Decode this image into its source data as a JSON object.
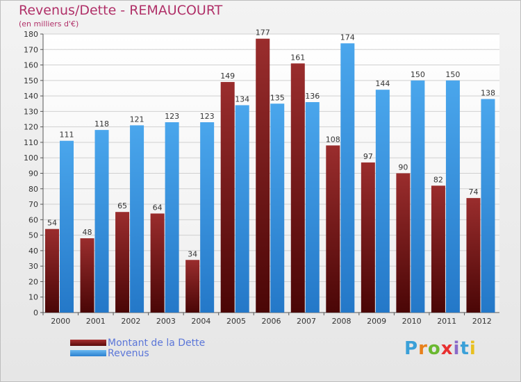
{
  "chart_data": {
    "type": "bar",
    "title": "Revenus/Dette - REMAUCOURT",
    "subtitle": "(en milliers d'€)",
    "categories": [
      "2000",
      "2001",
      "2002",
      "2003",
      "2004",
      "2005",
      "2006",
      "2007",
      "2008",
      "2009",
      "2010",
      "2011",
      "2012"
    ],
    "series": [
      {
        "name": "Montant de la Dette",
        "values": [
          54,
          48,
          65,
          64,
          34,
          149,
          177,
          161,
          108,
          97,
          90,
          82,
          74
        ],
        "color": "#7a1e1e"
      },
      {
        "name": "Revenus",
        "values": [
          111,
          118,
          121,
          123,
          123,
          134,
          135,
          136,
          174,
          144,
          150,
          150,
          138
        ],
        "color": "#3d95e0"
      }
    ],
    "ylim": [
      0,
      180
    ],
    "yticks": [
      0,
      10,
      20,
      30,
      40,
      50,
      60,
      70,
      80,
      90,
      100,
      110,
      120,
      130,
      140,
      150,
      160,
      170,
      180
    ],
    "grid": true,
    "legend_position": "bottom-left"
  },
  "logo": {
    "letters": [
      "P",
      "r",
      "o",
      "x",
      "i",
      "t",
      "i"
    ],
    "colors": [
      "#3aa0d8",
      "#e8801a",
      "#6ab830",
      "#e83030",
      "#8a6ac8",
      "#3aa0d8",
      "#e8c020"
    ]
  }
}
